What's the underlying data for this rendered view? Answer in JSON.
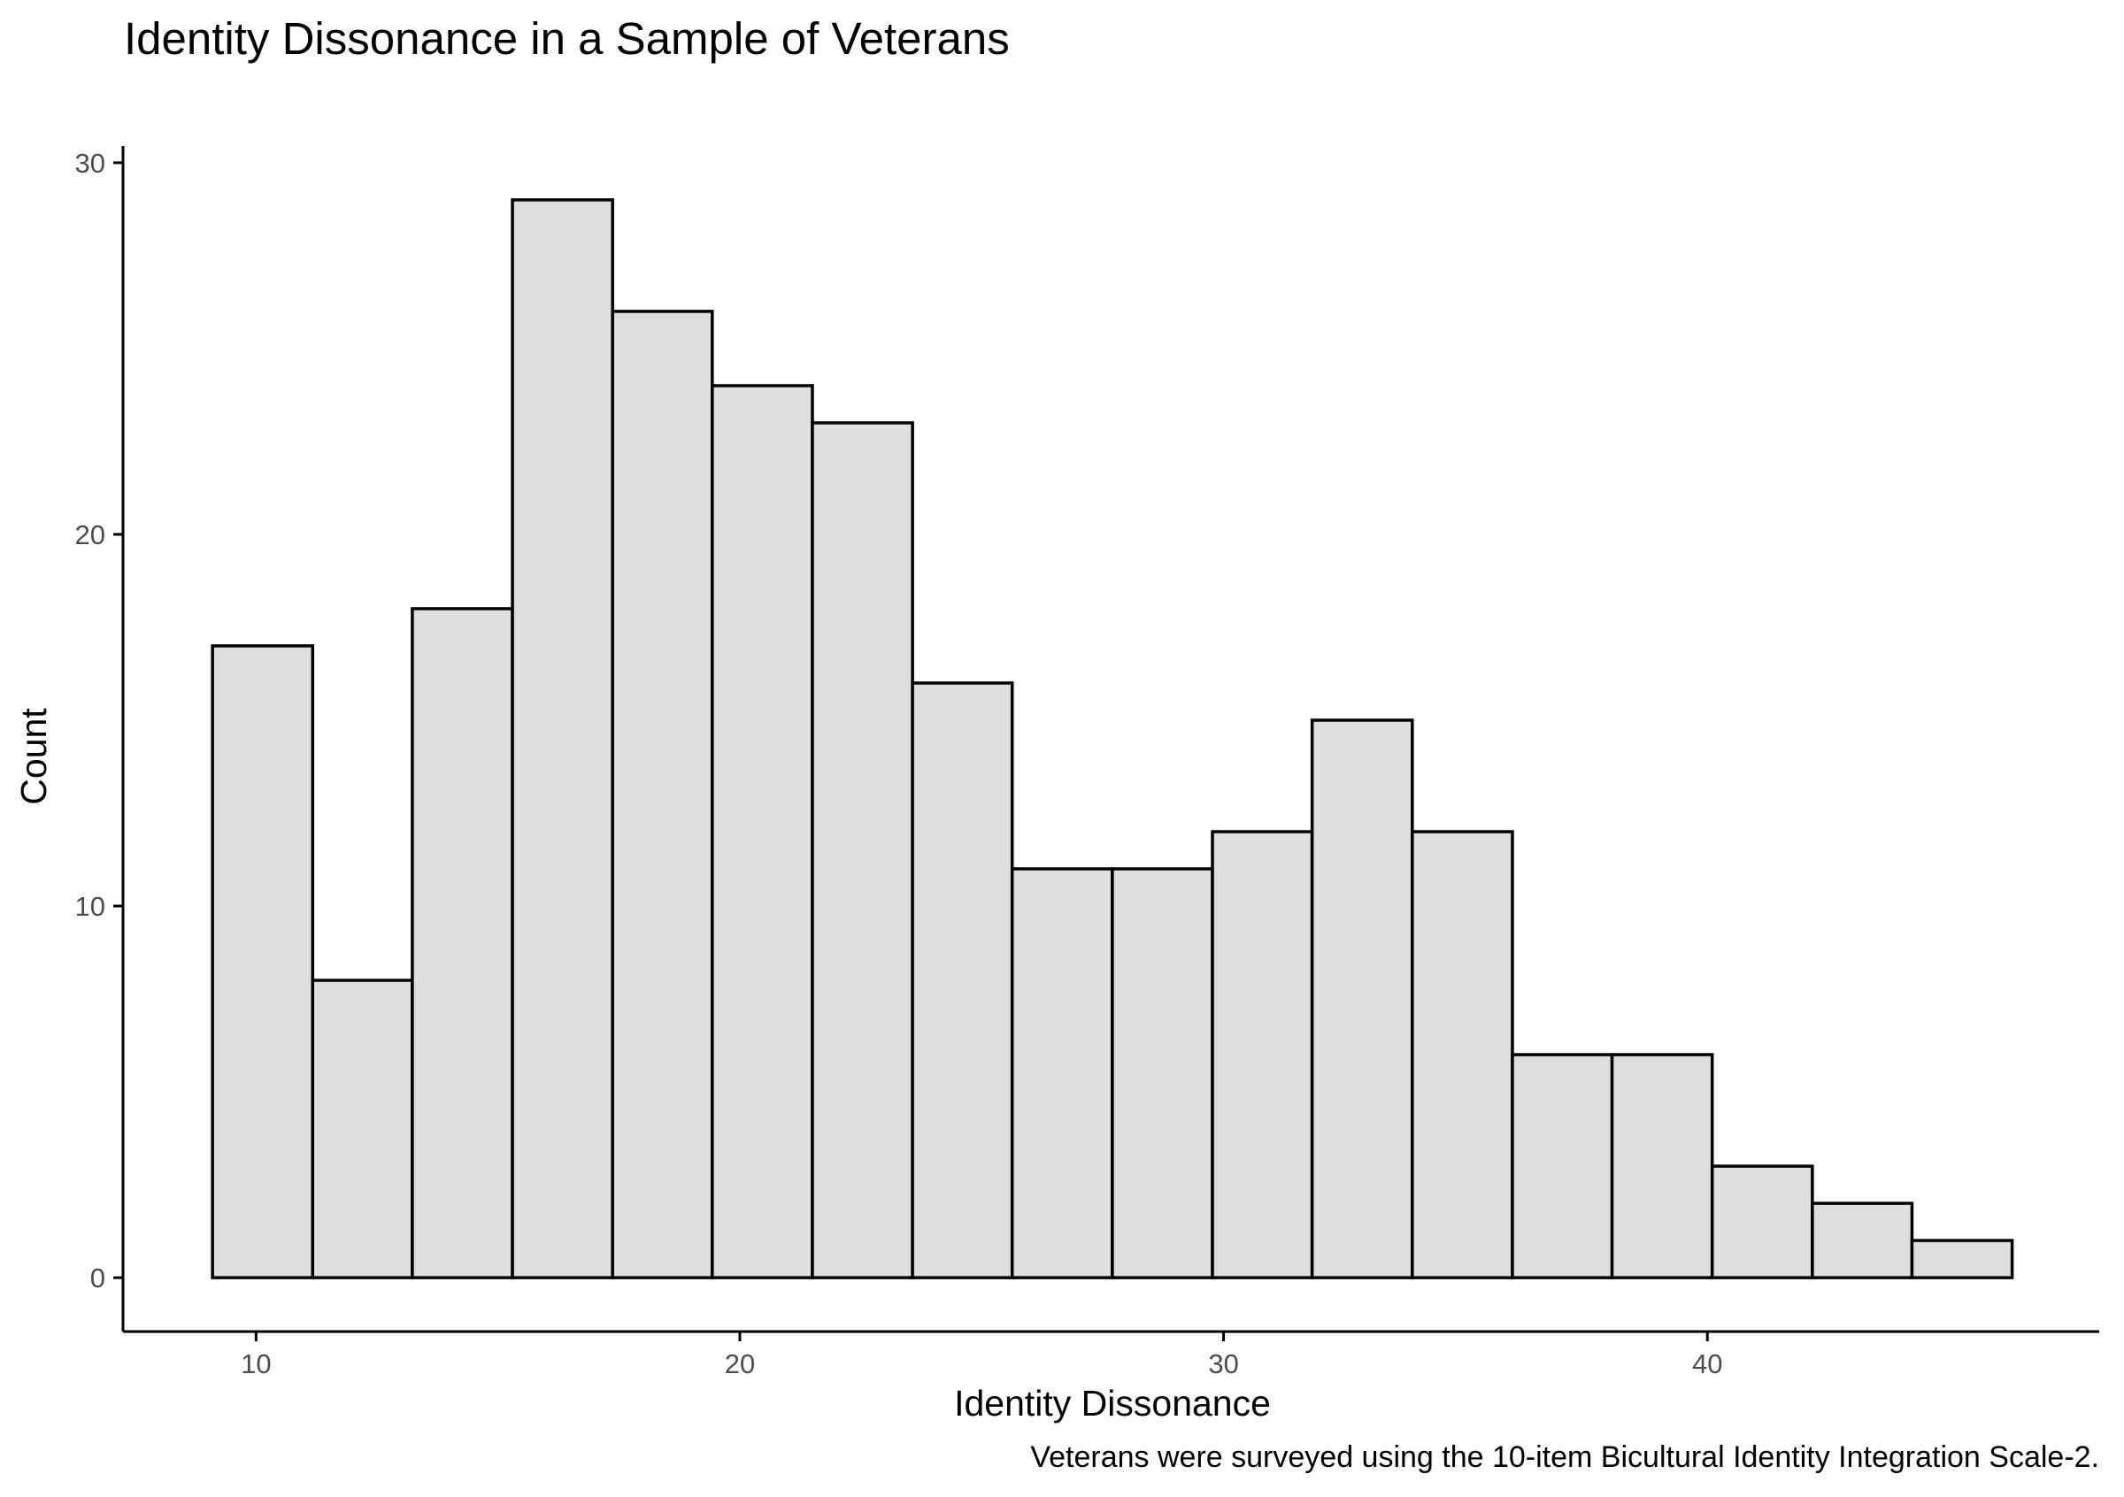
{
  "chart_data": {
    "type": "histogram",
    "title": "Identity Dissonance in a Sample of Veterans",
    "xlabel": "Identity Dissonance",
    "ylabel": "Count",
    "caption": "Veterans were surveyed using the 10-item Bicultural Identity Integration Scale-2.",
    "bin_width": 2.067,
    "bins": [
      {
        "x_start": 9.1,
        "x_end": 11.17,
        "count": 17
      },
      {
        "x_start": 11.17,
        "x_end": 13.23,
        "count": 8
      },
      {
        "x_start": 13.23,
        "x_end": 15.3,
        "count": 18
      },
      {
        "x_start": 15.3,
        "x_end": 17.37,
        "count": 29
      },
      {
        "x_start": 17.37,
        "x_end": 19.43,
        "count": 26
      },
      {
        "x_start": 19.43,
        "x_end": 21.5,
        "count": 24
      },
      {
        "x_start": 21.5,
        "x_end": 23.57,
        "count": 23
      },
      {
        "x_start": 23.57,
        "x_end": 25.63,
        "count": 16
      },
      {
        "x_start": 25.63,
        "x_end": 27.7,
        "count": 11
      },
      {
        "x_start": 27.7,
        "x_end": 29.77,
        "count": 11
      },
      {
        "x_start": 29.77,
        "x_end": 31.83,
        "count": 12
      },
      {
        "x_start": 31.83,
        "x_end": 33.9,
        "count": 15
      },
      {
        "x_start": 33.9,
        "x_end": 35.97,
        "count": 12
      },
      {
        "x_start": 35.97,
        "x_end": 38.03,
        "count": 6
      },
      {
        "x_start": 38.03,
        "x_end": 40.1,
        "count": 6
      },
      {
        "x_start": 40.1,
        "x_end": 42.17,
        "count": 3
      },
      {
        "x_start": 42.17,
        "x_end": 44.23,
        "count": 2
      },
      {
        "x_start": 44.23,
        "x_end": 46.3,
        "count": 1
      }
    ],
    "xlim": [
      7.25,
      48.1
    ],
    "ylim": [
      -1.45,
      30.45
    ],
    "x_ticks": [
      10,
      20,
      30,
      40
    ],
    "y_ticks": [
      0,
      10,
      20,
      30
    ],
    "bar_fill": "#dedede",
    "bar_stroke": "#000000",
    "grid": false,
    "legend": "none"
  }
}
